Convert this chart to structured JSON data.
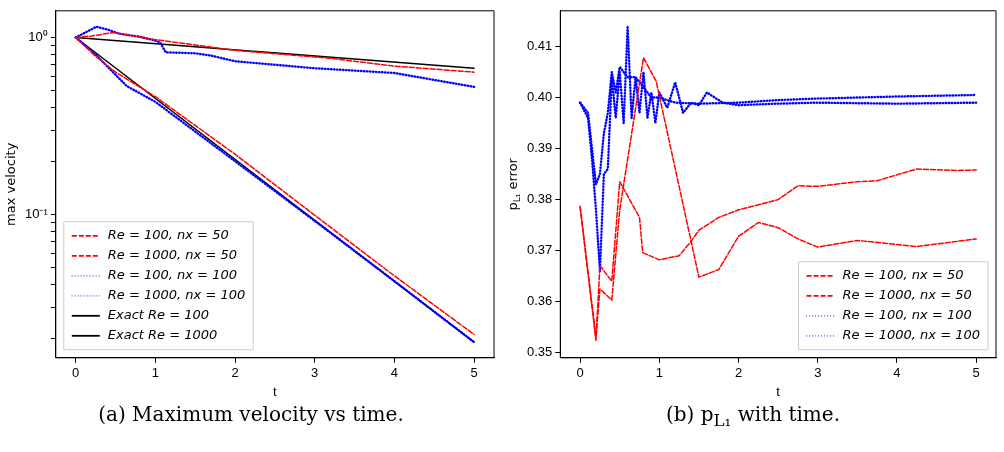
{
  "chart_data": [
    {
      "type": "line",
      "xlabel": "t",
      "ylabel": "max velocity",
      "annotations": [
        "(a) Maximum velocity vs time."
      ],
      "log": "y",
      "xlim": [
        -0.25,
        5.25
      ],
      "xticks": [
        0,
        1,
        2,
        3,
        4,
        5
      ],
      "ylim": [
        0.0155,
        1.415
      ],
      "yticks": [
        {
          "value": 0.02,
          "label": null
        },
        {
          "value": 0.03,
          "label": null
        },
        {
          "value": 0.04,
          "label": null
        },
        {
          "value": 0.05,
          "label": null
        },
        {
          "value": 0.06,
          "label": null
        },
        {
          "value": 0.07,
          "label": null
        },
        {
          "value": 0.08,
          "label": null
        },
        {
          "value": 0.09,
          "label": null
        },
        {
          "value": 0.1,
          "label": "10⁻¹"
        },
        {
          "value": 0.2,
          "label": null
        },
        {
          "value": 0.3,
          "label": null
        },
        {
          "value": 0.4,
          "label": null
        },
        {
          "value": 0.5,
          "label": null
        },
        {
          "value": 0.6,
          "label": null
        },
        {
          "value": 0.7,
          "label": null
        },
        {
          "value": 0.8,
          "label": null
        },
        {
          "value": 0.9,
          "label": null
        },
        {
          "value": 1,
          "label": "10⁰"
        }
      ],
      "legend": "bottom left",
      "grid": false,
      "marker": "none",
      "series": [
        {
          "name": "Re = 100, nx = 50",
          "color": "#ff0000",
          "line_style": "dashed",
          "x": [
            0,
            0.25,
            0.5,
            1,
            2,
            3,
            4,
            5
          ],
          "values": [
            1,
            0.783,
            0.637,
            0.463,
            0.219,
            0.099,
            0.045,
            0.021
          ]
        },
        {
          "name": "Re = 1000, nx = 50",
          "color": "#ff0000",
          "line_style": "dashed",
          "x": [
            0,
            0.2,
            0.47,
            0.98,
            2,
            3.19,
            4,
            5
          ],
          "values": [
            1,
            1.02,
            1.066,
            0.975,
            0.846,
            0.763,
            0.689,
            0.637
          ]
        },
        {
          "name": "Re = 100, nx = 100",
          "color": "#0000ff",
          "line_style": "dotted",
          "x": [
            0,
            0.25,
            0.64,
            1,
            2,
            3,
            4,
            5
          ],
          "values": [
            1,
            0.8,
            0.532,
            0.433,
            0.2,
            0.092,
            0.042,
            0.019
          ]
        },
        {
          "name": "Re = 1000, nx = 100",
          "color": "#0000ff",
          "line_style": "dotted",
          "x": [
            0,
            0.26,
            0.4,
            0.55,
            0.8,
            1,
            1.06,
            1.13,
            1.5,
            1.7,
            2,
            3,
            4,
            5
          ],
          "values": [
            1,
            1.15,
            1.108,
            1.05,
            1.01,
            0.96,
            0.937,
            0.824,
            0.814,
            0.79,
            0.734,
            0.67,
            0.63,
            0.526
          ]
        },
        {
          "name": "Exact Re = 100",
          "color": "#000000",
          "line_style": "solid",
          "x": [
            0,
            5
          ],
          "values": [
            1,
            0.019
          ]
        },
        {
          "name": "Exact Re = 1000",
          "color": "#000000",
          "line_style": "solid",
          "x": [
            0,
            5
          ],
          "values": [
            1,
            0.67
          ]
        }
      ]
    },
    {
      "type": "line",
      "xlabel": "t",
      "ylabel": "p$_{L₁}$ error",
      "annotations": [
        "(b) p$_{L₁}$ with time."
      ],
      "xlim": [
        -0.25,
        5.25
      ],
      "xticks": [
        0,
        1,
        2,
        3,
        4,
        5
      ],
      "ylim": [
        0.349,
        0.417
      ],
      "yticks": [
        {
          "value": 0.35,
          "label": "0.35"
        },
        {
          "value": 0.36,
          "label": "0.36"
        },
        {
          "value": 0.37,
          "label": "0.37"
        },
        {
          "value": 0.38,
          "label": "0.38"
        },
        {
          "value": 0.39,
          "label": "0.39"
        },
        {
          "value": 0.4,
          "label": "0.40"
        },
        {
          "value": 0.41,
          "label": "0.41"
        }
      ],
      "legend": "bottom right",
      "grid": false,
      "marker": "none",
      "series": [
        {
          "name": "Re = 100, nx = 50",
          "color": "#ff0000",
          "line_style": "dashed",
          "x": [
            0,
            0.2,
            0.25,
            0.4,
            0.5,
            0.8,
            0.96,
            1.5,
            1.75,
            2,
            2.25,
            2.5,
            2.75,
            3,
            3.5,
            4.25,
            5
          ],
          "values": [
            0.3785,
            0.353,
            0.3625,
            0.3603,
            0.378,
            0.4078,
            0.4032,
            0.3648,
            0.3663,
            0.3728,
            0.3755,
            0.3745,
            0.3723,
            0.3707,
            0.372,
            0.3708,
            0.3723
          ]
        },
        {
          "name": "Re = 1000, nx = 50",
          "color": "#ff0000",
          "line_style": "dashed",
          "x": [
            0,
            0.2,
            0.25,
            0.4,
            0.5,
            0.75,
            0.79,
            1,
            1.25,
            1.4,
            1.5,
            1.75,
            2,
            2.5,
            2.75,
            3,
            3.5,
            3.75,
            4.25,
            4.75,
            5
          ],
          "values": [
            0.3787,
            0.3524,
            0.3671,
            0.364,
            0.3835,
            0.3765,
            0.3696,
            0.3682,
            0.369,
            0.3718,
            0.374,
            0.3765,
            0.378,
            0.38,
            0.3827,
            0.3826,
            0.3835,
            0.3837,
            0.386,
            0.3857,
            0.3858
          ]
        },
        {
          "name": "Re = 100, nx = 100",
          "color": "#0000ff",
          "line_style": "dotted",
          "x": [
            0,
            0.1,
            0.15,
            0.2,
            0.25,
            0.3,
            0.35,
            0.4,
            0.45,
            0.5,
            0.55,
            0.6,
            0.65,
            0.7,
            0.75,
            0.8,
            0.85,
            0.9,
            0.95,
            1,
            1.1,
            1.2,
            1.3,
            1.4,
            1.5,
            1.6,
            1.8,
            2,
            2.5,
            3,
            4,
            5
          ],
          "values": [
            0.399,
            0.396,
            0.388,
            0.378,
            0.366,
            0.385,
            0.386,
            0.404,
            0.396,
            0.405,
            0.395,
            0.414,
            0.396,
            0.404,
            0.397,
            0.405,
            0.396,
            0.401,
            0.395,
            0.401,
            0.398,
            0.403,
            0.397,
            0.399,
            0.3985,
            0.401,
            0.399,
            0.3985,
            0.3988,
            0.399,
            0.3988,
            0.399
          ]
        },
        {
          "name": "Re = 1000, nx = 100",
          "color": "#0000ff",
          "line_style": "dotted",
          "x": [
            0,
            0.1,
            0.15,
            0.2,
            0.25,
            0.3,
            0.35,
            0.4,
            0.45,
            0.5,
            0.6,
            0.7,
            0.8,
            0.9,
            1,
            1.2,
            1.5,
            2,
            2.5,
            3,
            4,
            5
          ],
          "values": [
            0.399,
            0.397,
            0.39,
            0.383,
            0.385,
            0.393,
            0.397,
            0.405,
            0.401,
            0.406,
            0.404,
            0.404,
            0.402,
            0.4,
            0.4,
            0.399,
            0.3988,
            0.399,
            0.3995,
            0.3998,
            0.4002,
            0.4005
          ]
        }
      ]
    }
  ]
}
